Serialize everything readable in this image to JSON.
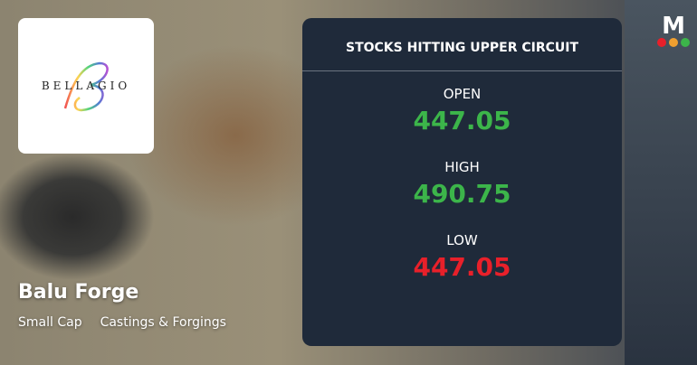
{
  "company": {
    "name": "Balu Forge",
    "cap": "Small Cap",
    "sector": "Castings & Forgings",
    "logo_text": "BELLAGIO"
  },
  "panel": {
    "title": "STOCKS HITTING UPPER CIRCUIT",
    "open_label": "OPEN",
    "open": "447.05",
    "high_label": "HIGH",
    "high": "490.75",
    "low_label": "LOW",
    "low": "447.05"
  },
  "colors": {
    "up": "#3cb54a",
    "down": "#e8202a",
    "panel": "#1f2a3a"
  },
  "brand": {
    "letter": "M",
    "dots": [
      "#e8202a",
      "#f0a030",
      "#3cb54a"
    ]
  }
}
